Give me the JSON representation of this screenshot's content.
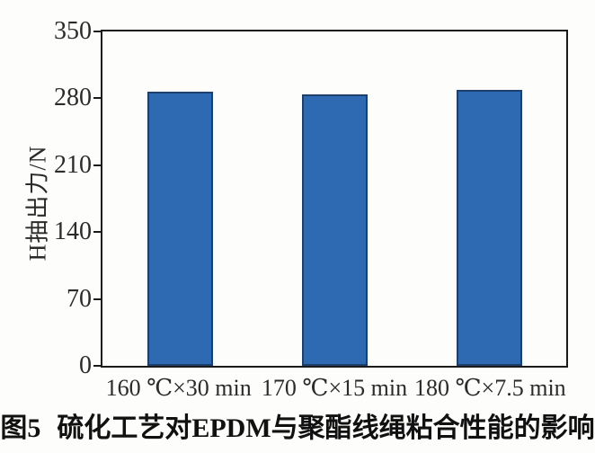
{
  "figure": {
    "caption_label": "图5",
    "caption_text": "硫化工艺对EPDM与聚酯线绳粘合性能的影响"
  },
  "chart_data": {
    "type": "bar",
    "categories": [
      "160 ℃×30 min",
      "170 ℃×15 min",
      "180 ℃×7.5 min"
    ],
    "values": [
      287,
      284,
      289
    ],
    "title": "",
    "xlabel": "",
    "ylabel": "H抽出力/N",
    "ylim": [
      0,
      350
    ],
    "yticks": [
      0,
      70,
      140,
      210,
      280,
      350
    ],
    "grid": false,
    "legend": "none",
    "bar_fill_color": "#2e6ab2",
    "bar_border_color": "#1c3f6e",
    "axis_color": "#1a1a1a",
    "text_color": "#2b2b2b"
  }
}
